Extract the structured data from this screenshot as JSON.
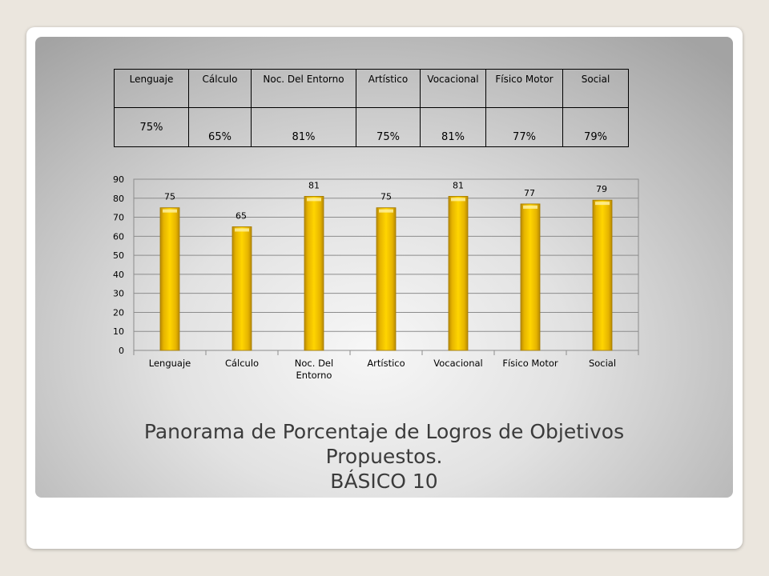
{
  "summary_table": {
    "headers": [
      "Lenguaje",
      "Cálculo",
      "Noc. Del Entorno",
      "Artístico",
      "Vocacional",
      "Físico Motor",
      "Social"
    ],
    "values": [
      "75%",
      "65%",
      "81%",
      "75%",
      "81%",
      "77%",
      "79%"
    ]
  },
  "chart_data": {
    "type": "bar",
    "categories": [
      "Lenguaje",
      "Cálculo",
      "Noc. Del Entorno",
      "Artístico",
      "Vocacional",
      "Físico Motor",
      "Social"
    ],
    "values": [
      75,
      65,
      81,
      75,
      81,
      77,
      79
    ],
    "ylim": [
      0,
      90
    ],
    "yticks": [
      "0",
      "10",
      "20",
      "30",
      "40",
      "50",
      "60",
      "70",
      "80",
      "90"
    ],
    "grid": true,
    "legend": "none",
    "bar_color": "#f2c200",
    "title": "",
    "xlabel": "",
    "ylabel": ""
  },
  "caption": {
    "line1": "Panorama de Porcentaje de Logros de Objetivos",
    "line2": "Propuestos.",
    "line3": "BÁSICO 10"
  }
}
